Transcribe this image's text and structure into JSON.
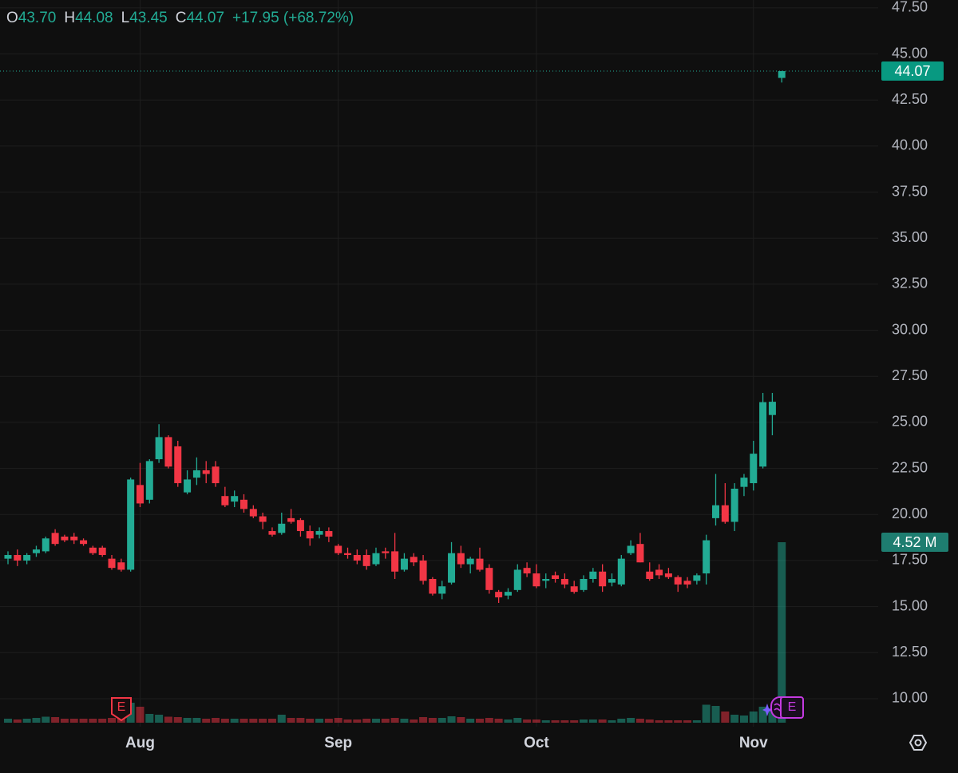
{
  "chart_data": {
    "type": "candlestick",
    "legend": {
      "items": [
        {
          "key": "O",
          "value": "43.70"
        },
        {
          "key": "H",
          "value": "44.08"
        },
        {
          "key": "L",
          "value": "43.45"
        },
        {
          "key": "C",
          "value": "44.07"
        }
      ],
      "change": "+17.95 (+68.72%)"
    },
    "categories": [
      null,
      null,
      null,
      null,
      null,
      null,
      null,
      null,
      null,
      null,
      null,
      null,
      null,
      null,
      "Aug",
      null,
      null,
      null,
      null,
      null,
      null,
      null,
      null,
      null,
      null,
      null,
      null,
      null,
      null,
      null,
      null,
      null,
      null,
      null,
      null,
      "Sep",
      null,
      null,
      null,
      null,
      null,
      null,
      null,
      null,
      null,
      null,
      null,
      null,
      null,
      null,
      null,
      null,
      null,
      null,
      null,
      null,
      "Oct",
      null,
      null,
      null,
      null,
      null,
      null,
      null,
      null,
      null,
      null,
      null,
      null,
      null,
      null,
      null,
      null,
      null,
      null,
      null,
      null,
      null,
      null,
      "Nov",
      null,
      null,
      null
    ],
    "open": [
      17.6,
      17.8,
      17.5,
      17.9,
      18.0,
      19.0,
      18.8,
      18.8,
      18.6,
      18.2,
      18.2,
      17.6,
      17.4,
      17.0,
      21.6,
      20.8,
      23.0,
      24.2,
      23.7,
      21.2,
      22.0,
      22.4,
      22.6,
      21.0,
      20.7,
      20.8,
      20.3,
      19.9,
      19.1,
      19.0,
      19.8,
      19.7,
      19.1,
      18.9,
      19.1,
      18.3,
      17.9,
      17.8,
      17.8,
      17.3,
      18.0,
      18.0,
      17.0,
      17.7,
      17.5,
      16.5,
      15.7,
      16.3,
      17.9,
      17.3,
      17.6,
      17.1,
      15.8,
      15.6,
      15.9,
      17.1,
      16.8,
      16.4,
      16.7,
      16.5,
      16.1,
      15.9,
      16.5,
      16.9,
      16.3,
      16.2,
      17.9,
      18.4,
      16.9,
      17.0,
      16.8,
      16.6,
      16.4,
      16.4,
      16.8,
      19.8,
      20.5,
      19.6,
      21.5,
      21.7,
      22.6,
      25.4,
      43.7
    ],
    "high": [
      18.0,
      18.1,
      17.9,
      18.3,
      18.8,
      19.2,
      18.9,
      19.0,
      18.7,
      18.3,
      18.3,
      17.8,
      17.6,
      22.0,
      22.8,
      23.0,
      24.9,
      24.3,
      24.0,
      22.4,
      23.1,
      22.9,
      22.9,
      21.5,
      21.3,
      21.1,
      20.5,
      20.1,
      19.3,
      20.1,
      20.3,
      19.8,
      19.4,
      19.3,
      19.3,
      18.4,
      18.2,
      18.1,
      18.1,
      18.2,
      18.2,
      19.0,
      17.9,
      17.9,
      17.8,
      16.6,
      16.4,
      18.5,
      18.3,
      17.7,
      18.2,
      17.3,
      15.9,
      16.0,
      17.3,
      17.4,
      17.3,
      16.8,
      16.9,
      16.8,
      16.4,
      16.7,
      17.1,
      17.3,
      16.8,
      17.8,
      18.6,
      19.0,
      17.4,
      17.3,
      17.1,
      16.7,
      16.6,
      16.8,
      18.9,
      22.2,
      21.7,
      21.7,
      22.2,
      24.0,
      26.6,
      26.6,
      44.08
    ],
    "low": [
      17.3,
      17.2,
      17.3,
      17.7,
      17.9,
      18.3,
      18.5,
      18.4,
      18.3,
      17.8,
      17.7,
      17.0,
      16.9,
      16.9,
      20.4,
      20.6,
      22.8,
      22.5,
      21.5,
      21.1,
      21.6,
      21.7,
      21.5,
      20.4,
      20.4,
      20.1,
      19.8,
      19.2,
      18.8,
      18.9,
      19.5,
      18.8,
      18.3,
      18.7,
      18.5,
      17.8,
      17.6,
      17.3,
      17.0,
      17.2,
      17.6,
      16.5,
      16.9,
      17.2,
      16.2,
      15.6,
      15.4,
      16.2,
      17.1,
      16.8,
      16.9,
      15.7,
      15.2,
      15.4,
      15.8,
      16.6,
      16.0,
      16.0,
      16.3,
      16.0,
      15.7,
      15.8,
      16.3,
      15.8,
      16.1,
      16.1,
      17.8,
      17.4,
      16.4,
      16.5,
      16.5,
      15.8,
      16.0,
      16.2,
      16.2,
      19.4,
      19.5,
      19.1,
      21.0,
      21.3,
      22.5,
      24.3,
      43.45
    ],
    "close": [
      17.8,
      17.5,
      17.8,
      18.1,
      18.7,
      18.4,
      18.6,
      18.6,
      18.4,
      17.9,
      17.8,
      17.1,
      17.0,
      21.9,
      20.6,
      22.9,
      24.2,
      22.6,
      21.7,
      21.9,
      22.4,
      22.2,
      21.7,
      20.5,
      21.0,
      20.3,
      19.9,
      19.6,
      18.9,
      19.5,
      19.6,
      19.1,
      18.7,
      19.1,
      18.8,
      17.9,
      17.8,
      17.5,
      17.2,
      17.9,
      17.9,
      16.9,
      17.6,
      17.4,
      16.4,
      15.7,
      16.1,
      17.9,
      17.3,
      17.6,
      17.0,
      15.9,
      15.5,
      15.8,
      17.0,
      16.8,
      16.1,
      16.5,
      16.5,
      16.2,
      15.8,
      16.5,
      16.9,
      16.1,
      16.5,
      17.6,
      18.3,
      17.4,
      16.5,
      16.7,
      16.6,
      16.2,
      16.2,
      16.7,
      18.6,
      20.5,
      19.6,
      21.4,
      22.0,
      23.3,
      26.1,
      26.12,
      44.07
    ],
    "volume": [
      0.1,
      0.08,
      0.1,
      0.12,
      0.15,
      0.14,
      0.1,
      0.1,
      0.1,
      0.1,
      0.1,
      0.12,
      0.1,
      0.5,
      0.4,
      0.22,
      0.2,
      0.15,
      0.14,
      0.12,
      0.12,
      0.1,
      0.12,
      0.1,
      0.1,
      0.1,
      0.1,
      0.1,
      0.1,
      0.2,
      0.12,
      0.12,
      0.1,
      0.1,
      0.1,
      0.12,
      0.08,
      0.08,
      0.1,
      0.1,
      0.1,
      0.12,
      0.1,
      0.08,
      0.14,
      0.12,
      0.12,
      0.16,
      0.14,
      0.1,
      0.1,
      0.12,
      0.1,
      0.08,
      0.12,
      0.08,
      0.08,
      0.06,
      0.06,
      0.06,
      0.06,
      0.08,
      0.08,
      0.08,
      0.06,
      0.1,
      0.12,
      0.1,
      0.08,
      0.06,
      0.06,
      0.06,
      0.06,
      0.06,
      0.45,
      0.42,
      0.28,
      0.2,
      0.18,
      0.28,
      0.4,
      0.35,
      4.52
    ],
    "volume_label": "4.52 M",
    "volume_lim": [
      0,
      18.1
    ],
    "up_color": "#22ab94",
    "down_color": "#f23645",
    "ylim": [
      8.48,
      47.93
    ],
    "yticks": [
      {
        "value": 10,
        "label": "10.00"
      },
      {
        "value": 12.5,
        "label": "12.50"
      },
      {
        "value": 15,
        "label": "15.00"
      },
      {
        "value": 17.5,
        "label": "17.50"
      },
      {
        "value": 20,
        "label": "20.00"
      },
      {
        "value": 22.5,
        "label": "22.50"
      },
      {
        "value": 25,
        "label": "25.00"
      },
      {
        "value": 27.5,
        "label": "27.50"
      },
      {
        "value": 30,
        "label": "30.00"
      },
      {
        "value": 32.5,
        "label": "32.50"
      },
      {
        "value": 35,
        "label": "35.00"
      },
      {
        "value": 37.5,
        "label": "37.50"
      },
      {
        "value": 40,
        "label": "40.00"
      },
      {
        "value": 42.5,
        "label": "42.50"
      },
      {
        "value": 45,
        "label": "45.00"
      },
      {
        "value": 47.5,
        "label": "47.50"
      }
    ],
    "grid": true,
    "events": [
      {
        "label": "E"
      },
      {
        "label": "E"
      }
    ]
  }
}
